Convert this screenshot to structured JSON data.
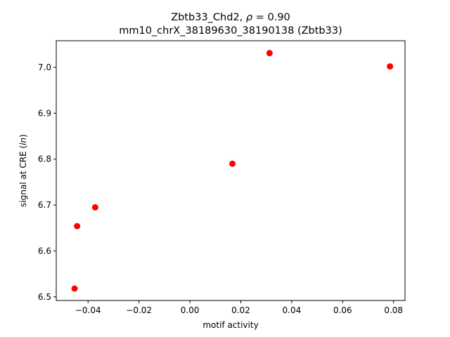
{
  "chart_data": {
    "type": "scatter",
    "title_line1": "Zbtb33_Chd2, ρ = 0.90",
    "title_line2": "mm10_chrX_38189630_38190138 (Zbtb33)",
    "xlabel": "motif activity",
    "ylabel": "signal at CRE (ln)",
    "xlim": [
      -0.0525,
      0.0845
    ],
    "ylim": [
      6.492,
      7.058
    ],
    "xticks": [
      -0.04,
      -0.02,
      0.0,
      0.02,
      0.04,
      0.06,
      0.08
    ],
    "xtick_labels": [
      "−0.04",
      "−0.02",
      "0.00",
      "0.02",
      "0.04",
      "0.06",
      "0.08"
    ],
    "yticks": [
      6.5,
      6.6,
      6.7,
      6.8,
      6.9,
      7.0
    ],
    "ytick_labels": [
      "6.5",
      "6.6",
      "6.7",
      "6.8",
      "6.9",
      "7.0"
    ],
    "grid": false,
    "point_color": "#ff0000",
    "points": [
      {
        "x": -0.0453,
        "y": 6.518
      },
      {
        "x": -0.0443,
        "y": 6.654
      },
      {
        "x": -0.0372,
        "y": 6.695
      },
      {
        "x": 0.0167,
        "y": 6.79
      },
      {
        "x": 0.0313,
        "y": 7.031
      },
      {
        "x": 0.0786,
        "y": 7.002
      }
    ]
  }
}
